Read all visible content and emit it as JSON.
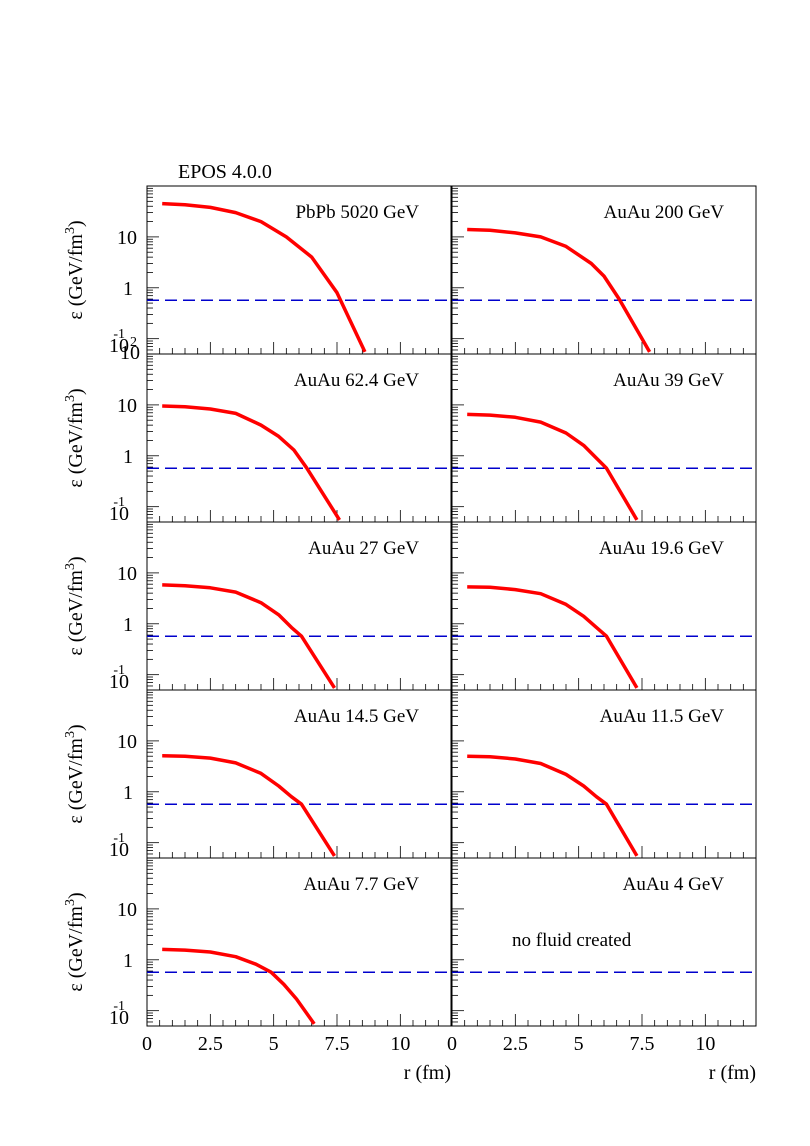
{
  "figure_title": "EPOS 4.0.0",
  "y_axis_label": {
    "base": "ε (GeV/fm",
    "sup": "3",
    "close": ")"
  },
  "x_axis_label": "r (fm)",
  "y_tick_labels": {
    "ten": "10",
    "one": "1",
    "tenth_base": "10",
    "tenth_exp": "-1"
  },
  "top_panel_extra_tick": {
    "base": "10",
    "exp": "2"
  },
  "x_tick_labels": [
    "0",
    "2.5",
    "5",
    "7.5",
    "10"
  ],
  "colors": {
    "curve": "#ff0000",
    "threshold": "#0000cc",
    "frame": "#000000"
  },
  "chart_data": [
    {
      "type": "line",
      "title": "PbPb 5020 GeV",
      "xlim": [
        0,
        12
      ],
      "ylim": [
        0.05,
        100
      ],
      "log_y": true,
      "threshold": 0.57,
      "series": [
        {
          "x": [
            0.6,
            1.5,
            2.5,
            3.5,
            4.5,
            5.5,
            6.5,
            7.5,
            8.6
          ],
          "y": [
            45,
            43,
            38,
            30,
            20,
            10,
            4,
            0.8,
            0.055
          ]
        }
      ]
    },
    {
      "type": "line",
      "title": "AuAu 200 GeV",
      "xlim": [
        0,
        12
      ],
      "ylim": [
        0.05,
        100
      ],
      "log_y": true,
      "threshold": 0.57,
      "series": [
        {
          "x": [
            0.6,
            1.5,
            2.5,
            3.5,
            4.5,
            5.5,
            6.0,
            6.6,
            7.8
          ],
          "y": [
            14,
            13.5,
            12,
            10,
            6.5,
            3,
            1.7,
            0.6,
            0.055
          ]
        }
      ]
    },
    {
      "type": "line",
      "title": "AuAu 62.4 GeV",
      "xlim": [
        0,
        12
      ],
      "ylim": [
        0.05,
        100
      ],
      "log_y": true,
      "threshold": 0.57,
      "series": [
        {
          "x": [
            0.6,
            1.5,
            2.5,
            3.5,
            4.5,
            5.2,
            5.8,
            6.3,
            7.6
          ],
          "y": [
            9.5,
            9.2,
            8.3,
            6.8,
            4.0,
            2.4,
            1.3,
            0.58,
            0.055
          ]
        }
      ]
    },
    {
      "type": "line",
      "title": "AuAu 39 GeV",
      "xlim": [
        0,
        12
      ],
      "ylim": [
        0.05,
        100
      ],
      "log_y": true,
      "threshold": 0.57,
      "series": [
        {
          "x": [
            0.6,
            1.5,
            2.5,
            3.5,
            4.5,
            5.2,
            5.7,
            6.1,
            7.3
          ],
          "y": [
            6.5,
            6.3,
            5.7,
            4.6,
            2.8,
            1.6,
            0.9,
            0.57,
            0.055
          ]
        }
      ]
    },
    {
      "type": "line",
      "title": "AuAu 27 GeV",
      "xlim": [
        0,
        12
      ],
      "ylim": [
        0.05,
        100
      ],
      "log_y": true,
      "threshold": 0.57,
      "series": [
        {
          "x": [
            0.6,
            1.5,
            2.5,
            3.5,
            4.5,
            5.2,
            5.7,
            6.1,
            7.4
          ],
          "y": [
            5.8,
            5.6,
            5.1,
            4.2,
            2.6,
            1.5,
            0.85,
            0.57,
            0.055
          ]
        }
      ]
    },
    {
      "type": "line",
      "title": "AuAu 19.6 GeV",
      "xlim": [
        0,
        12
      ],
      "ylim": [
        0.05,
        100
      ],
      "log_y": true,
      "threshold": 0.57,
      "series": [
        {
          "x": [
            0.6,
            1.5,
            2.5,
            3.5,
            4.5,
            5.2,
            5.7,
            6.1,
            7.3
          ],
          "y": [
            5.3,
            5.2,
            4.7,
            3.9,
            2.4,
            1.4,
            0.85,
            0.57,
            0.055
          ]
        }
      ]
    },
    {
      "type": "line",
      "title": "AuAu 14.5 GeV",
      "xlim": [
        0,
        12
      ],
      "ylim": [
        0.05,
        100
      ],
      "log_y": true,
      "threshold": 0.57,
      "series": [
        {
          "x": [
            0.6,
            1.5,
            2.5,
            3.5,
            4.5,
            5.2,
            5.7,
            6.1,
            7.4
          ],
          "y": [
            5.1,
            5.0,
            4.6,
            3.7,
            2.3,
            1.3,
            0.8,
            0.57,
            0.055
          ]
        }
      ]
    },
    {
      "type": "line",
      "title": "AuAu 11.5 GeV",
      "xlim": [
        0,
        12
      ],
      "ylim": [
        0.05,
        100
      ],
      "log_y": true,
      "threshold": 0.57,
      "series": [
        {
          "x": [
            0.6,
            1.5,
            2.5,
            3.5,
            4.5,
            5.2,
            5.7,
            6.1,
            7.3
          ],
          "y": [
            5.0,
            4.9,
            4.4,
            3.6,
            2.2,
            1.3,
            0.8,
            0.57,
            0.055
          ]
        }
      ]
    },
    {
      "type": "line",
      "title": "AuAu 7.7 GeV",
      "xlim": [
        0,
        12
      ],
      "ylim": [
        0.05,
        100
      ],
      "log_y": true,
      "threshold": 0.57,
      "series": [
        {
          "x": [
            0.6,
            1.5,
            2.5,
            3.5,
            4.3,
            4.9,
            5.4,
            5.9,
            6.6
          ],
          "y": [
            1.6,
            1.55,
            1.42,
            1.15,
            0.82,
            0.57,
            0.33,
            0.17,
            0.055
          ]
        }
      ]
    },
    {
      "type": "line",
      "title": "AuAu 4 GeV",
      "xlim": [
        0,
        12
      ],
      "ylim": [
        0.05,
        100
      ],
      "log_y": true,
      "threshold": 0.57,
      "annotation": "no fluid created",
      "series": []
    }
  ]
}
